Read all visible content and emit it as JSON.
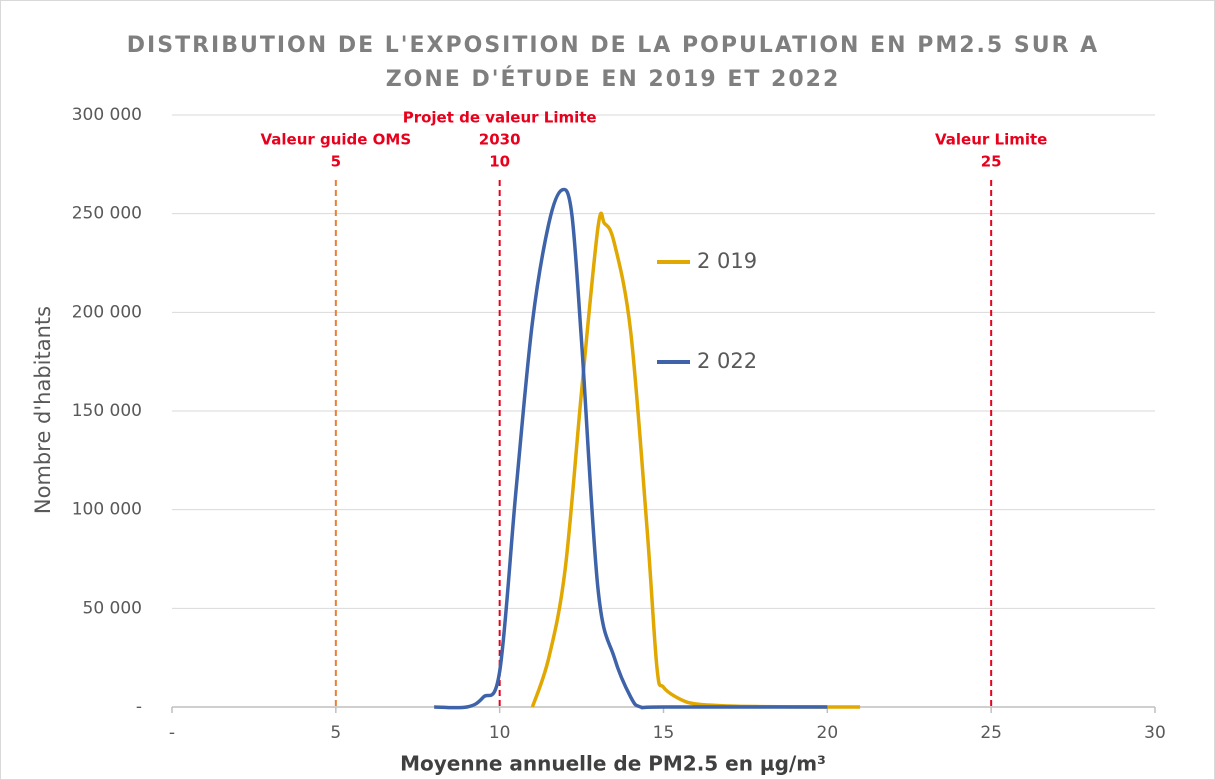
{
  "chart_data": {
    "type": "line",
    "title": [
      "DISTRIBUTION DE L'EXPOSITION DE LA POPULATION EN PM2.5 SUR A",
      "ZONE D'ÉTUDE EN 2019 ET 2022"
    ],
    "x_label": "Moyenne annuelle de PM2.5 en µg/m³",
    "y_label": "Nombre d'habitants",
    "xlim": [
      0,
      30
    ],
    "xticks": [
      {
        "value": 0,
        "label": "-"
      },
      5,
      10,
      15,
      20,
      25,
      30
    ],
    "ylim": [
      0,
      300000
    ],
    "yticks": [
      {
        "value": 0,
        "label": "-"
      },
      {
        "value": 50000,
        "label": "50 000"
      },
      {
        "value": 100000,
        "label": "100 000"
      },
      {
        "value": 150000,
        "label": "150 000"
      },
      {
        "value": 200000,
        "label": "200 000"
      },
      {
        "value": 250000,
        "label": "250 000"
      },
      {
        "value": 300000,
        "label": "300 000"
      }
    ],
    "grid": true,
    "legend": "right",
    "series": [
      {
        "name": "2 019",
        "color": "#e0a800",
        "x": [
          11.0,
          11.5,
          12.0,
          12.5,
          13.0,
          13.2,
          13.5,
          14.0,
          14.5,
          14.8,
          15.0,
          15.5,
          16.0,
          17.0,
          18.0,
          20.0,
          21.0
        ],
        "values": [
          0,
          25000,
          70000,
          160000,
          243000,
          245000,
          235000,
          190000,
          90000,
          20000,
          10000,
          4000,
          1500,
          500,
          200,
          0,
          0
        ]
      },
      {
        "name": "2 022",
        "color": "#3f63a8",
        "x": [
          8.0,
          9.0,
          9.5,
          10.0,
          10.5,
          11.0,
          11.5,
          11.9,
          12.2,
          12.5,
          13.0,
          13.5,
          14.0,
          14.3,
          15.0,
          20.0
        ],
        "values": [
          0,
          0,
          5000,
          18000,
          110000,
          195000,
          245000,
          262000,
          250000,
          185000,
          60000,
          25000,
          5000,
          0,
          0,
          0
        ]
      }
    ],
    "references": [
      {
        "x": 5,
        "color": "#ed7d31",
        "label": [
          "Valeur guide OMS",
          "5"
        ]
      },
      {
        "x": 10,
        "color": "#e8001c",
        "label": [
          "Projet de valeur Limite",
          "2030",
          "10"
        ]
      },
      {
        "x": 25,
        "color": "#e8001c",
        "label": [
          "Valeur Limite",
          "25"
        ]
      }
    ]
  }
}
